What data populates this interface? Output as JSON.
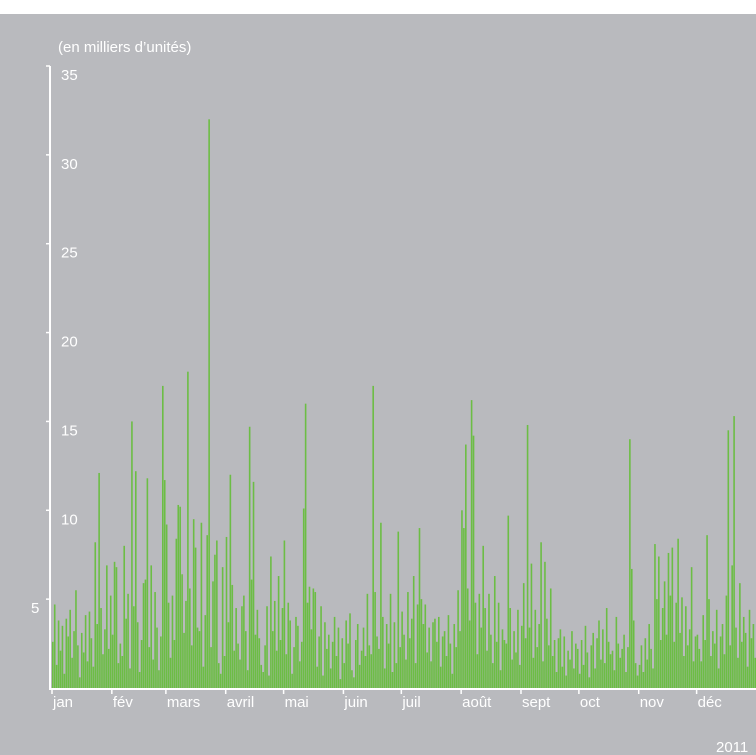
{
  "chart_data": {
    "type": "bar",
    "ylabel": "(en milliers d’unités)",
    "xlabel": "2011",
    "color": "#6cbd45",
    "ylim": [
      0,
      35
    ],
    "yticks": [
      5,
      10,
      15,
      20,
      25,
      30,
      35
    ],
    "categories": [
      "jan",
      null,
      null,
      null,
      null,
      null,
      null,
      null,
      null,
      null,
      null,
      null,
      null,
      null,
      null,
      null,
      null,
      null,
      null,
      null,
      null,
      null,
      null,
      null,
      null,
      null,
      null,
      null,
      null,
      null,
      null,
      "fév",
      null,
      null,
      null,
      null,
      null,
      null,
      null,
      null,
      null,
      null,
      null,
      null,
      null,
      null,
      null,
      null,
      null,
      null,
      null,
      null,
      null,
      null,
      null,
      null,
      null,
      null,
      null,
      "mars",
      null,
      null,
      null,
      null,
      null,
      null,
      null,
      null,
      null,
      null,
      null,
      null,
      null,
      null,
      null,
      null,
      null,
      null,
      null,
      null,
      null,
      null,
      null,
      null,
      null,
      null,
      null,
      null,
      null,
      null,
      "avril",
      null,
      null,
      null,
      null,
      null,
      null,
      null,
      null,
      null,
      null,
      null,
      null,
      null,
      null,
      null,
      null,
      null,
      null,
      null,
      null,
      null,
      null,
      null,
      null,
      null,
      null,
      null,
      null,
      null,
      "mai",
      null,
      null,
      null,
      null,
      null,
      null,
      null,
      null,
      null,
      null,
      null,
      null,
      null,
      null,
      null,
      null,
      null,
      null,
      null,
      null,
      null,
      null,
      null,
      null,
      null,
      null,
      null,
      null,
      null,
      null,
      "juin",
      null,
      null,
      null,
      null,
      null,
      null,
      null,
      null,
      null,
      null,
      null,
      null,
      null,
      null,
      null,
      null,
      null,
      null,
      null,
      null,
      null,
      null,
      null,
      null,
      null,
      null,
      null,
      null,
      null,
      "juil",
      null,
      null,
      null,
      null,
      null,
      null,
      null,
      null,
      null,
      null,
      null,
      null,
      null,
      null,
      null,
      null,
      null,
      null,
      null,
      null,
      null,
      null,
      null,
      null,
      null,
      null,
      null,
      null,
      null,
      null,
      "août",
      null,
      null,
      null,
      null,
      null,
      null,
      null,
      null,
      null,
      null,
      null,
      null,
      null,
      null,
      null,
      null,
      null,
      null,
      null,
      null,
      null,
      null,
      null,
      null,
      null,
      null,
      null,
      null,
      null,
      null,
      "sept",
      null,
      null,
      null,
      null,
      null,
      null,
      null,
      null,
      null,
      null,
      null,
      null,
      null,
      null,
      null,
      null,
      null,
      null,
      null,
      null,
      null,
      null,
      null,
      null,
      null,
      null,
      null,
      null,
      null,
      "oct",
      null,
      null,
      null,
      null,
      null,
      null,
      null,
      null,
      null,
      null,
      null,
      null,
      null,
      null,
      null,
      null,
      null,
      null,
      null,
      null,
      null,
      null,
      null,
      null,
      null,
      null,
      null,
      null,
      null,
      null,
      "nov",
      null,
      null,
      null,
      null,
      null,
      null,
      null,
      null,
      null,
      null,
      null,
      null,
      null,
      null,
      null,
      null,
      null,
      null,
      null,
      null,
      null,
      null,
      null,
      null,
      null,
      null,
      null,
      null,
      null,
      "déc",
      null,
      null,
      null,
      null,
      null,
      null,
      null,
      null,
      null,
      null,
      null,
      null,
      null,
      null,
      null,
      null,
      null,
      null,
      null,
      null,
      null,
      null,
      null,
      null,
      null,
      null,
      null,
      null,
      null,
      null
    ],
    "values": [
      2.6,
      4.7,
      1.3,
      3.8,
      2.1,
      3.5,
      0.8,
      3.9,
      2.9,
      4.4,
      1.7,
      3.2,
      5.5,
      2.4,
      0.6,
      3.1,
      2.0,
      4.1,
      1.5,
      4.3,
      2.8,
      1.2,
      8.2,
      3.6,
      12.1,
      4.5,
      1.9,
      3.3,
      6.9,
      2.2,
      5.2,
      3.0,
      7.1,
      6.8,
      1.4,
      2.5,
      1.8,
      8.0,
      3.9,
      5.3,
      1.1,
      15.0,
      4.6,
      12.2,
      3.7,
      0.9,
      2.7,
      5.9,
      6.1,
      11.8,
      2.3,
      6.9,
      1.6,
      5.4,
      3.4,
      1.0,
      2.9,
      17.0,
      11.7,
      9.2,
      4.8,
      1.7,
      5.2,
      2.7,
      8.4,
      10.3,
      10.2,
      6.4,
      3.1,
      4.9,
      17.8,
      5.6,
      2.4,
      9.5,
      7.9,
      3.4,
      3.2,
      9.3,
      1.2,
      4.1,
      8.6,
      32.0,
      2.3,
      6.0,
      7.5,
      8.3,
      1.4,
      0.8,
      6.8,
      1.8,
      8.5,
      3.7,
      12.0,
      5.8,
      2.1,
      4.5,
      2.5,
      1.6,
      4.6,
      5.2,
      3.2,
      1.0,
      14.7,
      6.1,
      11.6,
      3.0,
      4.4,
      2.8,
      1.3,
      0.9,
      2.4,
      4.6,
      0.7,
      7.4,
      3.2,
      4.9,
      2.1,
      6.3,
      2.7,
      4.5,
      8.3,
      1.9,
      4.8,
      3.8,
      0.8,
      2.3,
      4.0,
      3.5,
      1.5,
      2.6,
      10.1,
      16.0,
      4.8,
      5.7,
      3.3,
      5.6,
      5.4,
      1.2,
      2.9,
      4.6,
      0.7,
      3.7,
      2.2,
      3.0,
      1.1,
      2.6,
      4.0,
      1.8,
      3.4,
      0.5,
      2.8,
      1.4,
      3.8,
      2.5,
      4.2,
      1.0,
      0.6,
      2.7,
      3.6,
      1.3,
      2.1,
      3.4,
      1.8,
      5.3,
      2.4,
      1.9,
      17.0,
      5.4,
      2.9,
      2.2,
      9.3,
      4.0,
      1.1,
      3.6,
      2.5,
      5.3,
      0.9,
      3.7,
      1.4,
      8.8,
      2.3,
      4.3,
      3.0,
      1.6,
      5.4,
      2.8,
      3.9,
      6.3,
      1.4,
      4.7,
      9.0,
      5.0,
      3.6,
      4.7,
      2.0,
      3.4,
      1.5,
      3.7,
      3.9,
      2.6,
      4.0,
      1.2,
      2.9,
      3.2,
      1.8,
      4.1,
      2.5,
      0.8,
      3.6,
      2.3,
      5.5,
      3.2,
      10.0,
      9.0,
      13.7,
      5.6,
      3.8,
      16.2,
      14.2,
      4.8,
      1.9,
      5.3,
      3.4,
      8.0,
      4.5,
      2.1,
      5.3,
      3.0,
      1.4,
      6.3,
      2.6,
      4.8,
      1.0,
      3.3,
      2.7,
      2.5,
      9.7,
      4.5,
      1.6,
      3.2,
      2.0,
      4.4,
      1.3,
      3.5,
      5.9,
      2.8,
      14.8,
      3.4,
      7.0,
      1.7,
      4.4,
      2.3,
      3.6,
      8.2,
      1.5,
      7.1,
      3.9,
      2.4,
      5.6,
      1.8,
      2.7,
      0.9,
      2.8,
      3.3,
      1.2,
      2.9,
      0.7,
      2.1,
      1.6,
      3.2,
      1.1,
      2.5,
      2.2,
      0.8,
      2.7,
      1.3,
      3.5,
      2.0,
      0.6,
      2.4,
      3.1,
      1.1,
      2.8,
      3.8,
      1.6,
      3.3,
      1.4,
      4.5,
      2.6,
      1.9,
      2.1,
      1.0,
      4.0,
      2.5,
      1.7,
      2.2,
      3.0,
      0.9,
      2.3,
      14.0,
      6.7,
      3.8,
      1.4,
      0.7,
      1.3,
      2.4,
      0.9,
      2.8,
      1.6,
      3.6,
      2.2,
      1.1,
      8.1,
      5.0,
      7.4,
      2.7,
      4.5,
      6.0,
      3.0,
      7.6,
      5.2,
      7.9,
      2.6,
      4.8,
      8.4,
      3.1,
      5.1,
      1.8,
      4.6,
      2.4,
      3.3,
      6.8,
      1.5,
      2.9,
      3.0,
      2.2,
      1.5,
      4.1,
      2.7,
      8.6,
      5.0,
      1.8,
      3.2,
      2.5,
      4.4,
      1.1,
      2.9,
      3.6,
      1.9,
      5.2,
      14.5,
      2.4,
      6.9,
      15.3,
      3.4,
      1.7,
      5.9,
      2.6,
      4.0,
      3.1,
      1.2,
      4.4,
      2.8,
      3.6,
      1.7
    ]
  }
}
